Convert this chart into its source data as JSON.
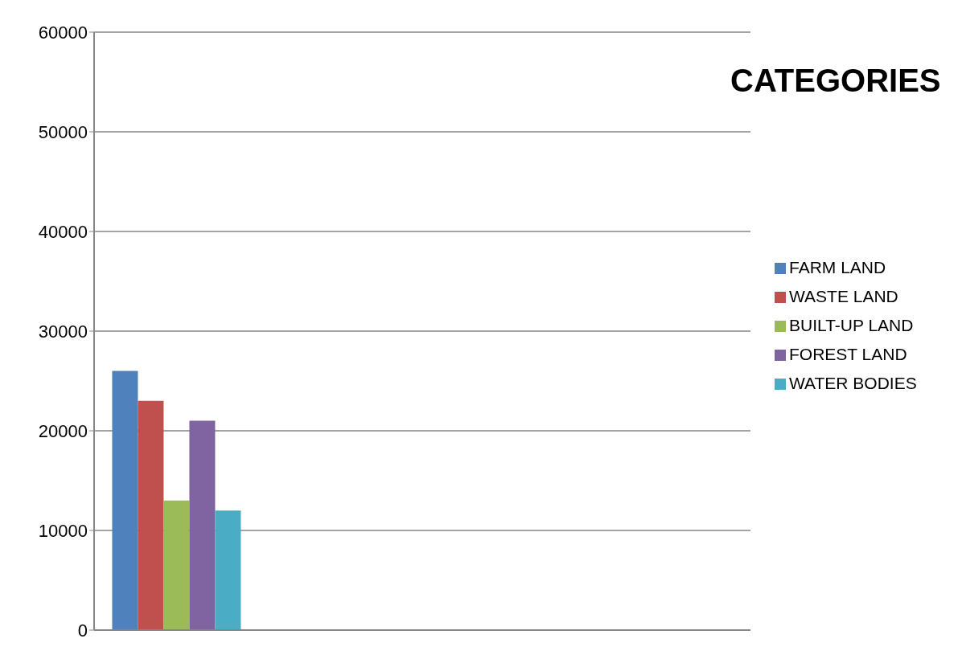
{
  "chart_data": {
    "type": "bar",
    "title": "CATEGORIES",
    "categories": [
      null,
      null,
      null,
      null
    ],
    "series": [
      {
        "name": "FARM LAND",
        "color": "#4f81bd",
        "values": [
          26000,
          0,
          0,
          0
        ]
      },
      {
        "name": "WASTE LAND",
        "color": "#c0504d",
        "values": [
          23000,
          0,
          0,
          0
        ]
      },
      {
        "name": "BUILT-UP LAND",
        "color": "#9bbb59",
        "values": [
          13000,
          0,
          0,
          0
        ]
      },
      {
        "name": "FOREST LAND",
        "color": "#8064a2",
        "values": [
          21000,
          0,
          0,
          0
        ]
      },
      {
        "name": "WATER BODIES",
        "color": "#4bacc6",
        "values": [
          12000,
          0,
          0,
          0
        ]
      }
    ],
    "ylim": [
      0,
      60000
    ],
    "yticks": [
      0,
      10000,
      20000,
      30000,
      40000,
      50000,
      60000
    ],
    "grid": "y",
    "legend": "right"
  }
}
